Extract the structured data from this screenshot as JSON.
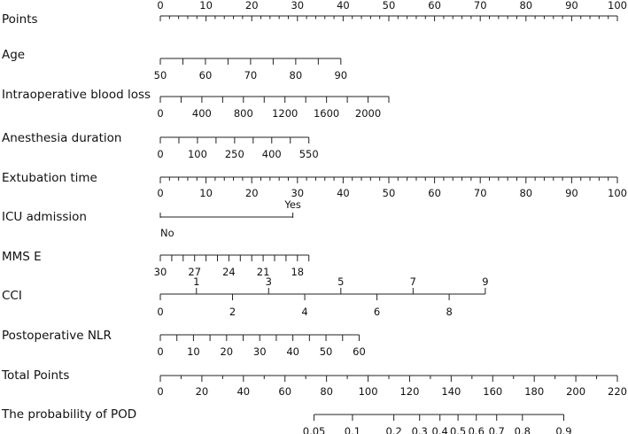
{
  "chart_data": {
    "type": "nomogram",
    "points_scale": {
      "label": "Points",
      "min": 0,
      "max": 100,
      "labels": [
        0,
        10,
        20,
        30,
        40,
        50,
        60,
        70,
        80,
        90,
        100
      ],
      "minor_step": 2
    },
    "variables": [
      {
        "label": "Age",
        "points_range": [
          0,
          39.5
        ],
        "ticks": [
          {
            "value": "50",
            "labeled": true
          },
          {
            "value": "55",
            "labeled": false
          },
          {
            "value": "60",
            "labeled": true
          },
          {
            "value": "65",
            "labeled": false
          },
          {
            "value": "70",
            "labeled": true
          },
          {
            "value": "75",
            "labeled": false
          },
          {
            "value": "80",
            "labeled": true
          },
          {
            "value": "85",
            "labeled": false
          },
          {
            "value": "90",
            "labeled": true
          }
        ]
      },
      {
        "label": "Intraoperative blood loss",
        "points_range": [
          0,
          50
        ],
        "ticks": [
          {
            "value": "0",
            "labeled": true
          },
          {
            "value": "200",
            "labeled": false
          },
          {
            "value": "400",
            "labeled": true
          },
          {
            "value": "600",
            "labeled": false
          },
          {
            "value": "800",
            "labeled": true
          },
          {
            "value": "1000",
            "labeled": false
          },
          {
            "value": "1200",
            "labeled": true
          },
          {
            "value": "1400",
            "labeled": false
          },
          {
            "value": "1600",
            "labeled": true
          },
          {
            "value": "1800",
            "labeled": false
          },
          {
            "value": "2000",
            "labeled": true
          },
          {
            "value": "2200",
            "labeled": false
          }
        ]
      },
      {
        "label": "Anesthesia duration",
        "points_range": [
          0,
          32.5
        ],
        "ticks": [
          {
            "value": "0",
            "labeled": true
          },
          {
            "value": "50",
            "labeled": false
          },
          {
            "value": "100",
            "labeled": true
          },
          {
            "value": "150",
            "labeled": false
          },
          {
            "value": "250",
            "labeled": true
          },
          {
            "value": "300",
            "labeled": false
          },
          {
            "value": "400",
            "labeled": true
          },
          {
            "value": "450",
            "labeled": false
          },
          {
            "value": "550",
            "labeled": true
          }
        ]
      },
      {
        "label": "Extubation time",
        "points_range": [
          0,
          100
        ],
        "labels": [
          0,
          10,
          20,
          30,
          40,
          50,
          60,
          70,
          80,
          90,
          100
        ],
        "minor_step": 2
      },
      {
        "label": "ICU admission",
        "points_range": [
          0,
          29
        ],
        "type": "binary",
        "low": "No",
        "high": "Yes"
      },
      {
        "label": "MMS E",
        "points_range": [
          0,
          32.5
        ],
        "ticks": [
          {
            "value": "30",
            "labeled": true
          },
          {
            "value": "29",
            "labeled": false
          },
          {
            "value": "28",
            "labeled": false
          },
          {
            "value": "27",
            "labeled": true
          },
          {
            "value": "26",
            "labeled": false
          },
          {
            "value": "25",
            "labeled": false
          },
          {
            "value": "24",
            "labeled": true
          },
          {
            "value": "23",
            "labeled": false
          },
          {
            "value": "22",
            "labeled": false
          },
          {
            "value": "21",
            "labeled": true
          },
          {
            "value": "20",
            "labeled": false
          },
          {
            "value": "19",
            "labeled": false
          },
          {
            "value": "18",
            "labeled": true
          },
          {
            "value": "17",
            "labeled": false
          }
        ]
      },
      {
        "label": "CCI",
        "points_range": [
          0,
          71.1
        ],
        "upper_labels": [
          "1",
          "3",
          "5",
          "7",
          "9"
        ],
        "lower_labels": [
          "0",
          "2",
          "4",
          "6",
          "8"
        ]
      },
      {
        "label": "Postoperative NLR",
        "points_range": [
          0,
          43.5
        ],
        "ticks": [
          {
            "value": "0",
            "labeled": true
          },
          {
            "value": "5",
            "labeled": false
          },
          {
            "value": "10",
            "labeled": true
          },
          {
            "value": "15",
            "labeled": false
          },
          {
            "value": "20",
            "labeled": true
          },
          {
            "value": "25",
            "labeled": false
          },
          {
            "value": "30",
            "labeled": true
          },
          {
            "value": "35",
            "labeled": false
          },
          {
            "value": "40",
            "labeled": true
          },
          {
            "value": "45",
            "labeled": false
          },
          {
            "value": "50",
            "labeled": true
          },
          {
            "value": "55",
            "labeled": false
          },
          {
            "value": "60",
            "labeled": true
          }
        ]
      }
    ],
    "total_points": {
      "label": "Total Points",
      "min": 0,
      "max": 220,
      "labels": [
        0,
        20,
        40,
        60,
        80,
        100,
        120,
        140,
        160,
        180,
        200,
        220
      ],
      "minor_step": 10
    },
    "probability": {
      "label": "The probability of POD",
      "values": [
        "0.05",
        "0.1",
        "0.2",
        "0.3",
        "0.4",
        "0.5",
        "0.6",
        "0.7",
        "0.8",
        "0.9"
      ],
      "total_points_at": [
        74.0,
        92.5,
        112.4,
        124.8,
        134.6,
        143.3,
        152.1,
        161.9,
        174.3,
        194.2
      ]
    }
  }
}
